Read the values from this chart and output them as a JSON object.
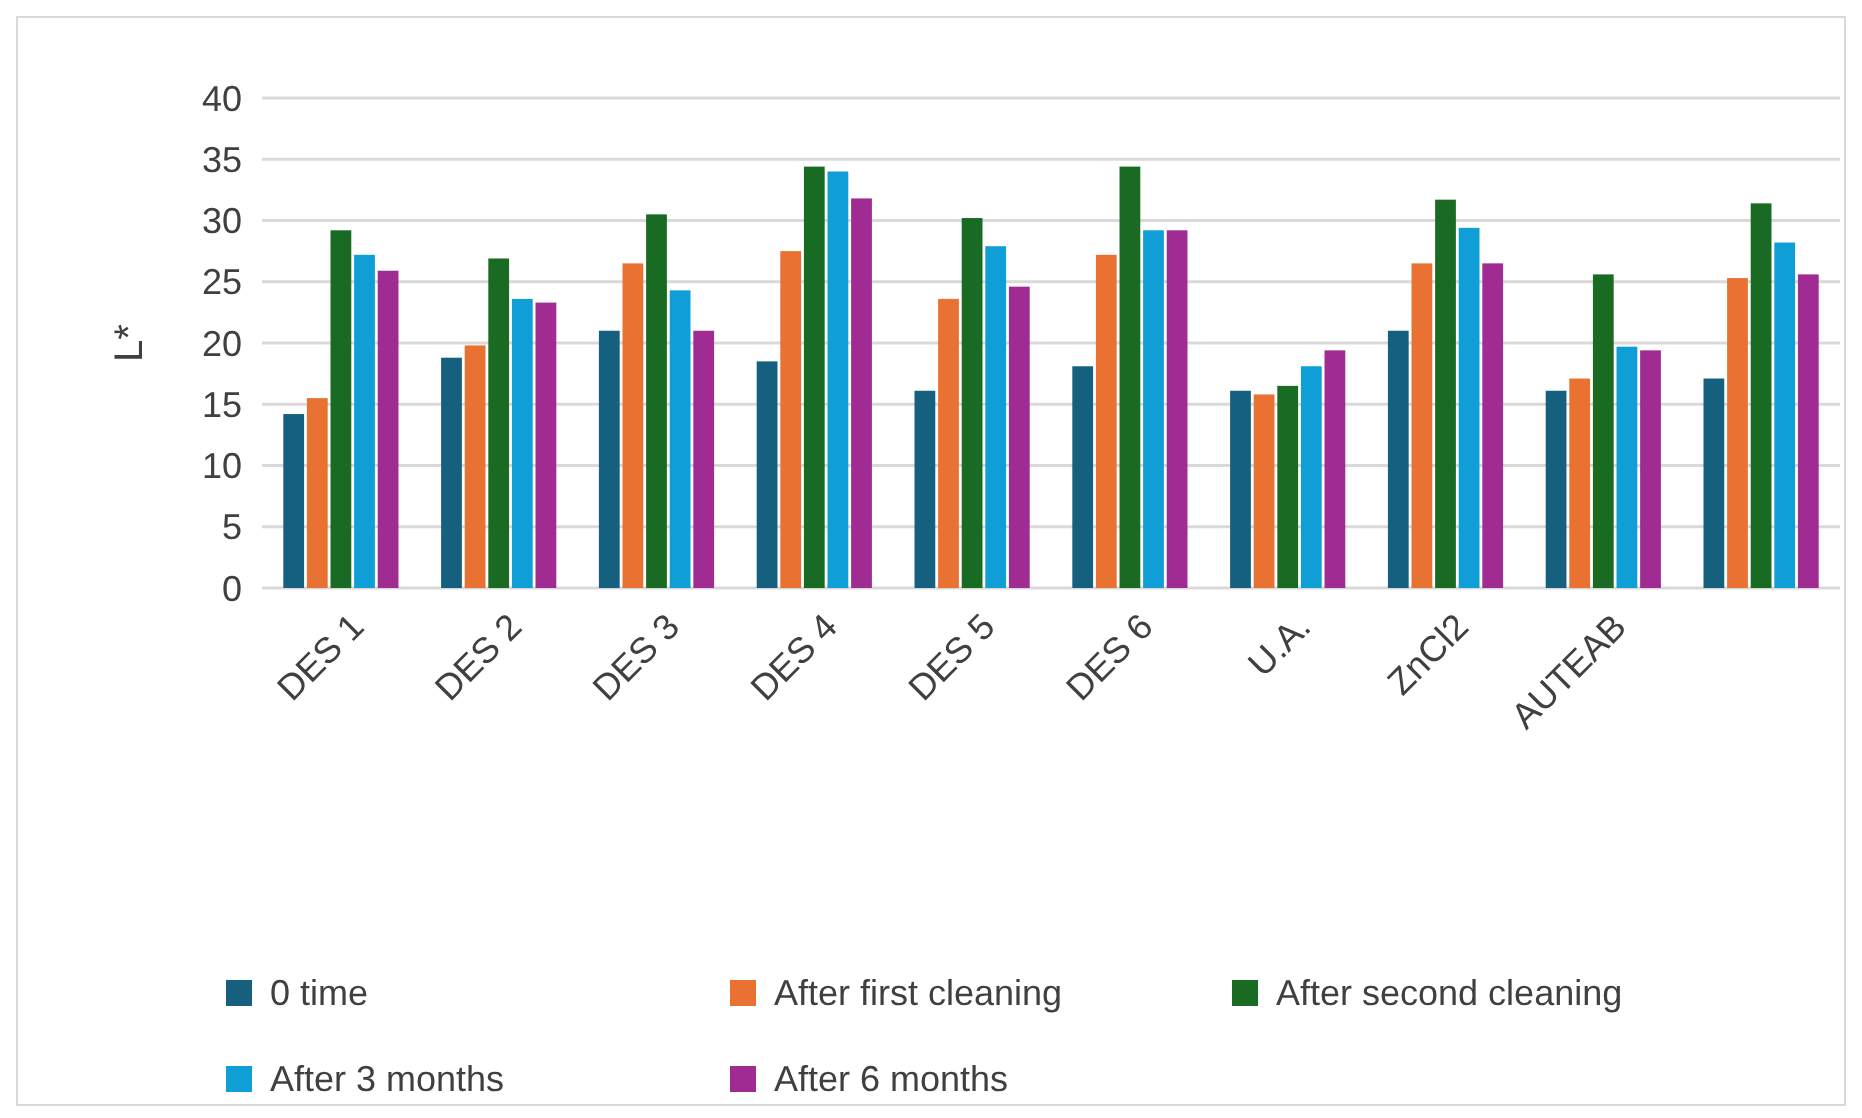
{
  "chart_data": {
    "type": "bar",
    "ylabel": "L*",
    "categories": [
      "DES 1",
      "DES 2",
      "DES 3",
      "DES 4",
      "DES 5",
      "DES 6",
      "U.A.",
      "ZnCl2",
      "AUTEAB",
      null
    ],
    "series": [
      {
        "name": "0 time",
        "color": "#16607f",
        "values": [
          14.2,
          18.8,
          21.0,
          18.5,
          16.1,
          18.1,
          16.1,
          21.0,
          16.1,
          17.1
        ]
      },
      {
        "name": "After first cleaning",
        "color": "#e97132",
        "values": [
          15.5,
          19.8,
          26.5,
          27.5,
          23.6,
          27.2,
          15.8,
          26.5,
          17.1,
          25.3
        ]
      },
      {
        "name": "After second cleaning",
        "color": "#196b24",
        "values": [
          29.2,
          26.9,
          30.5,
          34.4,
          30.2,
          34.4,
          16.5,
          31.7,
          25.6,
          31.4
        ]
      },
      {
        "name": "After 3 months",
        "color": "#0f9ed5",
        "values": [
          27.2,
          23.6,
          24.3,
          34.0,
          27.9,
          29.2,
          18.1,
          29.4,
          19.7,
          28.2
        ]
      },
      {
        "name": "After 6 months",
        "color": "#a02b93",
        "values": [
          25.9,
          23.3,
          21.0,
          31.8,
          24.6,
          29.2,
          19.4,
          26.5,
          19.4,
          25.6
        ]
      }
    ],
    "ylim": [
      0,
      40
    ],
    "yticks": [
      0,
      5,
      10,
      15,
      20,
      25,
      30,
      35,
      40
    ],
    "grid": "y",
    "legend": "bottom"
  }
}
